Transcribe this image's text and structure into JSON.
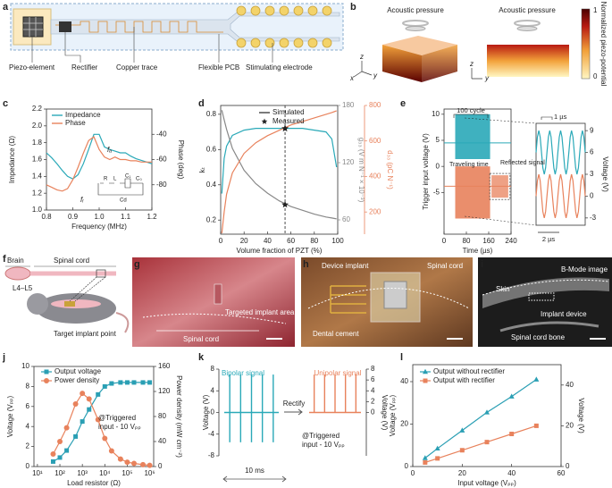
{
  "panel_labels": [
    "a",
    "b",
    "c",
    "d",
    "e",
    "f",
    "g",
    "h",
    "i",
    "j",
    "k",
    "l"
  ],
  "a": {
    "labels": [
      "Piezo-element",
      "Rectifier",
      "Copper trace",
      "Flexible PCB",
      "Stimulating electrode"
    ]
  },
  "b": {
    "labels": [
      "Acoustic pressure",
      "Acoustic pressure"
    ],
    "colorbar_title": "Normalized piezo-potential",
    "colorbar_ticks": [
      0,
      1
    ],
    "axes_letters": [
      "z",
      "y",
      "x",
      "z",
      "y"
    ]
  },
  "f": {
    "labels": [
      "Brain",
      "Spinal cord",
      "L4–L5",
      "Target implant point"
    ]
  },
  "g": {
    "labels": [
      "Targeted implant area",
      "Spinal cord"
    ]
  },
  "h": {
    "labels": [
      "Device implant",
      "Spinal cord",
      "Dental cement"
    ]
  },
  "i": {
    "labels": [
      "B-Mode image",
      "Skin",
      "Implant device",
      "Spinal cord bone"
    ]
  },
  "chart_data": [
    {
      "type": "line",
      "xlabel": "Frequency (MHz)",
      "ylabel": "Impedance (Ω)",
      "y2label": "Phase (deg)",
      "x": [
        0.8,
        0.82,
        0.84,
        0.86,
        0.88,
        0.9,
        0.92,
        0.94,
        0.96,
        0.98,
        1,
        1.02,
        1.04,
        1.06,
        1.08,
        1.1,
        1.12,
        1.14,
        1.16,
        1.18,
        1.2
      ],
      "xlim": [
        0.8,
        1.2
      ],
      "xticks": [
        0.8,
        0.9,
        {
          "value": 1,
          "label": "1.0"
        },
        1.1,
        1.2
      ],
      "ylim": [
        1,
        2.2
      ],
      "yticks": [
        {
          "value": 1,
          "label": "1.0"
        },
        1.2,
        1.4,
        1.6,
        1.8,
        {
          "value": 2,
          "label": "2.0"
        },
        2.2
      ],
      "y2lim": [
        -100,
        -20
      ],
      "y2ticks": [
        -80,
        -60,
        -40
      ],
      "series": [
        {
          "name": "Impedance",
          "color": "#2aa9b8",
          "values": [
            1.68,
            1.62,
            1.55,
            1.47,
            1.4,
            1.37,
            1.42,
            1.55,
            1.72,
            1.9,
            1.9,
            1.75,
            1.72,
            1.7,
            1.68,
            1.68,
            1.64,
            1.61,
            1.59,
            1.57,
            1.55
          ]
        },
        {
          "name": "Phase",
          "color": "#e8825c",
          "axis": "y2",
          "values": [
            -80,
            -82,
            -84,
            -85,
            -83,
            -76,
            -66,
            -55,
            -45,
            -42,
            -52,
            -58,
            -60,
            -58,
            -60,
            -60,
            -61,
            -61,
            -62,
            -62,
            -62
          ]
        }
      ],
      "annotations": [
        "fᵣ",
        "fₐ"
      ],
      "circuit_labels": [
        "R",
        "L",
        "C₁",
        "C₀",
        "Cd"
      ]
    },
    {
      "type": "line",
      "xlabel": "Volume fraction of PZT (%)",
      "ylabel": "kₜ",
      "y2label": "g₃₃ (V m N⁻¹ × 10⁻³)",
      "y3label": "d₃₃ (pC N⁻¹)",
      "x": [
        1,
        3,
        5,
        10,
        20,
        30,
        40,
        50,
        60,
        70,
        80,
        90,
        95,
        99
      ],
      "xlim": [
        0,
        100
      ],
      "xticks": [
        0,
        20,
        40,
        60,
        80,
        100
      ],
      "ylim": [
        0.12,
        0.85
      ],
      "yticks": [
        0.2,
        0.4,
        0.6,
        0.8
      ],
      "y2lim": [
        45,
        180
      ],
      "y2ticks": [
        60,
        120,
        180
      ],
      "y3lim": [
        75,
        800
      ],
      "y3ticks": [
        200,
        400,
        600,
        800
      ],
      "series": [
        {
          "color": "#2aa9b8",
          "values": [
            0.35,
            0.55,
            0.62,
            0.68,
            0.71,
            0.72,
            0.72,
            0.72,
            0.72,
            0.72,
            0.71,
            0.7,
            0.66,
            0.5
          ]
        },
        {
          "color": "#888888",
          "axis": "y2",
          "values": [
            175,
            165,
            155,
            135,
            112,
            98,
            88,
            80,
            74,
            70,
            66,
            63,
            62,
            61
          ]
        },
        {
          "color": "#e8825c",
          "axis": "y3",
          "values": [
            80,
            200,
            300,
            420,
            530,
            590,
            630,
            660,
            690,
            710,
            730,
            750,
            760,
            770
          ]
        }
      ],
      "legend": [
        "Simulated",
        "Measured"
      ],
      "measured": {
        "x": 55,
        "values": [
          0.72,
          76,
          670
        ]
      },
      "vline": 55
    },
    {
      "type": "burst",
      "xlabel": "Time (µs)",
      "ylabel": "Trigger input voltage (V)",
      "xlim": [
        0,
        240
      ],
      "xticks": [
        0,
        80,
        160,
        240
      ],
      "ylim": [
        -13,
        11
      ],
      "yticks": [
        -5,
        0,
        5,
        10
      ],
      "series": [
        {
          "color": "#2aa9b8",
          "baseline": 4.5,
          "bursts": [
            [
              40,
              165,
              1.4,
              10
            ]
          ]
        },
        {
          "color": "#e8825c",
          "baseline": -3.8,
          "bursts": [
            [
              40,
              165,
              -10,
              0
            ],
            [
              170,
              230,
              -6,
              -1.7
            ]
          ]
        }
      ],
      "annotations": [
        "100 cycle",
        "Traveling time",
        "Reflected signal"
      ]
    },
    {
      "type": "line",
      "ylabel": "Voltage (V)",
      "xlim": [
        0,
        4.5
      ],
      "ylim": [
        -4,
        10
      ],
      "yticks": [
        -3,
        0,
        3,
        6,
        9
      ],
      "x": [
        0,
        0.125,
        0.25,
        0.375,
        0.5,
        0.625,
        0.75,
        0.875,
        1,
        1.125,
        1.25,
        1.375,
        1.5,
        1.625,
        1.75,
        1.875,
        2,
        2.125,
        2.25,
        2.375,
        2.5,
        2.625,
        2.75,
        2.875,
        3,
        3.125,
        3.25,
        3.375,
        3.5,
        3.625,
        3.75,
        3.875,
        4,
        4.125,
        4.25,
        4.375,
        4.5
      ],
      "series": [
        {
          "color": "#2aa9b8",
          "values": [
            6,
            8.12,
            9,
            8.12,
            6,
            3.88,
            3,
            3.88,
            6,
            8.12,
            9,
            8.12,
            6,
            3.88,
            3,
            3.88,
            6,
            8.12,
            9,
            8.12,
            6,
            3.88,
            3,
            3.88,
            6,
            8.12,
            9,
            8.12,
            6,
            3.88,
            3,
            3.88,
            6,
            8.12,
            9,
            8.12,
            6
          ]
        },
        {
          "color": "#e8825c",
          "values": [
            0,
            2.12,
            3,
            2.12,
            0,
            -2.12,
            -3,
            -2.12,
            0,
            2.12,
            3,
            2.12,
            0,
            -2.12,
            -3,
            -2.12,
            0,
            2.12,
            3,
            2.12,
            0,
            -2.12,
            -3,
            -2.12,
            0,
            2.12,
            3,
            2.12,
            0,
            -2.12,
            -3,
            -2.12,
            0,
            2.12,
            3,
            2.12,
            0
          ]
        }
      ],
      "annotations": [
        "1 µs",
        "2 µs"
      ]
    },
    {
      "type": "line",
      "xlabel": "Load resistor (Ω)",
      "ylabel": "Voltage (Vₚₚ)",
      "y2label": "Power density (mW cm⁻²)",
      "xlog": true,
      "x": [
        50,
        100,
        200,
        500,
        1000,
        2000,
        5000,
        10000,
        20000,
        50000,
        100000,
        200000,
        500000,
        1000000
      ],
      "xlim": [
        7,
        1500000
      ],
      "xticks": [
        {
          "value": 10,
          "label": "10¹"
        },
        {
          "value": 100,
          "label": "10²"
        },
        {
          "value": 1000,
          "label": "10³"
        },
        {
          "value": 10000,
          "label": "10⁴"
        },
        {
          "value": 100000,
          "label": "10⁵"
        },
        {
          "value": 1000000,
          "label": "10⁶"
        }
      ],
      "ylim": [
        0,
        10
      ],
      "yticks": [
        0,
        2,
        4,
        6,
        8,
        10
      ],
      "y2lim": [
        0,
        160
      ],
      "y2ticks": [
        0,
        40,
        80,
        120,
        160
      ],
      "series": [
        {
          "name": "Output voltage",
          "color": "#2a9fb4",
          "marker": "square",
          "values": [
            0.5,
            0.9,
            1.6,
            3,
            4.5,
            5.7,
            7.2,
            8,
            8.3,
            8.4,
            8.4,
            8.4,
            8.4,
            8.4
          ]
        },
        {
          "name": "Power density",
          "color": "#e8825c",
          "marker": "circle",
          "axis": "y2",
          "values": [
            20,
            40,
            62,
            100,
            117,
            108,
            75,
            45,
            25,
            12,
            7,
            5,
            3,
            2
          ]
        }
      ],
      "annotations": [
        "@Triggered",
        "input - 10 Vₚₚ"
      ]
    },
    {
      "type": "spikes",
      "ylabel": "Voltage (V)",
      "xlim": [
        0,
        12
      ],
      "ylim": [
        -8,
        8
      ],
      "yticks": [
        -8,
        -4,
        0,
        4,
        8
      ],
      "x": [
        2,
        4,
        6,
        8,
        10
      ],
      "series": [
        {
          "name": "Bipolar signal",
          "color": "#2aa9b8",
          "values": [
            7,
            7,
            7,
            7,
            7
          ],
          "lows": [
            -5.5,
            -5.5,
            -5.5,
            -5.5,
            -5.5
          ]
        }
      ],
      "annotations": [
        "Rectify",
        "@Triggered",
        "input - 10 Vₚₚ",
        "10 ms"
      ]
    },
    {
      "type": "spikes",
      "ylabel": "Voltage (V)",
      "xlim": [
        0,
        12
      ],
      "ylim": [
        -8,
        8
      ],
      "yticks": [
        0,
        2,
        4,
        6,
        8
      ],
      "x": [
        2,
        4,
        6,
        8,
        10
      ],
      "series": [
        {
          "name": "Unipolar signal",
          "color": "#e8825c",
          "values": [
            7,
            7,
            7,
            7,
            7
          ],
          "lows": [
            0,
            0,
            0,
            0,
            0
          ]
        }
      ]
    },
    {
      "type": "line",
      "xlabel": "Input voltage (Vₚₚ)",
      "ylabel": "Voltage (Vₚₚ)",
      "y2label": "Voltage (V)",
      "x": [
        5,
        10,
        20,
        30,
        40,
        50
      ],
      "xlim": [
        0,
        60
      ],
      "xticks": [
        0,
        20,
        40,
        60
      ],
      "ylim": [
        0,
        48
      ],
      "yticks": [
        0,
        20,
        40
      ],
      "y2lim": [
        0,
        50
      ],
      "y2ticks": [
        0,
        20,
        40
      ],
      "series": [
        {
          "name": "Output without rectifier",
          "color": "#2a9fb4",
          "marker": "triangle",
          "values": [
            4,
            8.5,
            17,
            25.5,
            33,
            41
          ]
        },
        {
          "name": "Output with rectifier",
          "color": "#e8825c",
          "marker": "square",
          "axis": "y2",
          "values": [
            2,
            4,
            8,
            12,
            16,
            20
          ]
        }
      ]
    }
  ]
}
